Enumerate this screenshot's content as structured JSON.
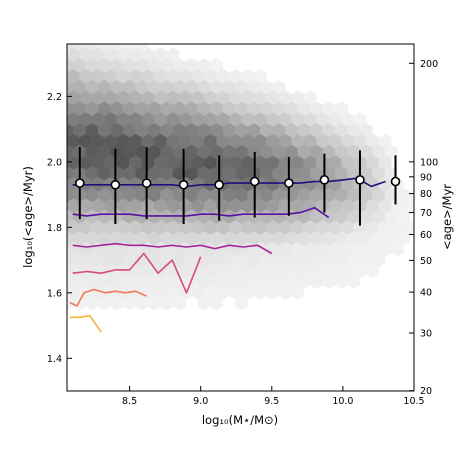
{
  "chart_data": {
    "type": "line",
    "xlabel": "log₁₀(M⋆/M⊙)",
    "ylabel": "log₁₀(<age>/Myr)",
    "ylabel_right": "<age>/Myr",
    "xlim": [
      8.06,
      10.5
    ],
    "ylim": [
      1.3,
      2.36
    ],
    "x_ticks": [
      {
        "value": 8.5,
        "label": "8.5"
      },
      {
        "value": 9.0,
        "label": "9.0"
      },
      {
        "value": 9.5,
        "label": "9.5"
      },
      {
        "value": 10.0,
        "label": "10.0"
      },
      {
        "value": 10.5,
        "label": "10.5"
      }
    ],
    "y_ticks": [
      {
        "value": 1.4,
        "label": "1.4"
      },
      {
        "value": 1.6,
        "label": "1.6"
      },
      {
        "value": 1.8,
        "label": "1.8"
      },
      {
        "value": 2.0,
        "label": "2.0"
      },
      {
        "value": 2.2,
        "label": "2.2"
      }
    ],
    "y_ticks_right": [
      {
        "value": 20,
        "label": "20"
      },
      {
        "value": 30,
        "label": "30"
      },
      {
        "value": 40,
        "label": "40"
      },
      {
        "value": 50,
        "label": "50"
      },
      {
        "value": 60,
        "label": "60"
      },
      {
        "value": 70,
        "label": "70"
      },
      {
        "value": 80,
        "label": "80"
      },
      {
        "value": 90,
        "label": "90"
      },
      {
        "value": 100,
        "label": "100"
      },
      {
        "value": 200,
        "label": "200"
      }
    ],
    "background": "hexbin density (grayscale)",
    "series": [
      {
        "color": "#1f0f7a",
        "x": [
          8.1,
          8.2,
          8.3,
          8.4,
          8.5,
          8.6,
          8.7,
          8.8,
          8.9,
          9.0,
          9.1,
          9.2,
          9.3,
          9.4,
          9.5,
          9.6,
          9.7,
          9.8,
          9.9,
          10.0,
          10.1,
          10.2,
          10.3
        ],
        "y": [
          1.93,
          1.93,
          1.93,
          1.93,
          1.93,
          1.93,
          1.93,
          1.93,
          1.925,
          1.93,
          1.93,
          1.935,
          1.935,
          1.935,
          1.935,
          1.935,
          1.935,
          1.94,
          1.94,
          1.945,
          1.95,
          1.925,
          1.94
        ]
      },
      {
        "color": "#5a10a0",
        "x": [
          8.1,
          8.2,
          8.3,
          8.4,
          8.5,
          8.6,
          8.7,
          8.8,
          8.9,
          9.0,
          9.1,
          9.2,
          9.3,
          9.4,
          9.5,
          9.6,
          9.7,
          9.8,
          9.9
        ],
        "y": [
          1.84,
          1.835,
          1.84,
          1.84,
          1.84,
          1.835,
          1.835,
          1.835,
          1.835,
          1.84,
          1.84,
          1.835,
          1.84,
          1.84,
          1.84,
          1.84,
          1.845,
          1.86,
          1.83
        ]
      },
      {
        "color": "#a8229a",
        "x": [
          8.1,
          8.2,
          8.3,
          8.4,
          8.5,
          8.6,
          8.7,
          8.8,
          8.9,
          9.0,
          9.1,
          9.2,
          9.3,
          9.4,
          9.5
        ],
        "y": [
          1.745,
          1.74,
          1.745,
          1.75,
          1.745,
          1.745,
          1.74,
          1.745,
          1.74,
          1.745,
          1.735,
          1.745,
          1.74,
          1.745,
          1.72
        ]
      },
      {
        "color": "#d8487c",
        "x": [
          8.1,
          8.2,
          8.3,
          8.4,
          8.5,
          8.6,
          8.7,
          8.8,
          8.9,
          9.0
        ],
        "y": [
          1.66,
          1.665,
          1.66,
          1.67,
          1.67,
          1.72,
          1.66,
          1.7,
          1.6,
          1.71
        ]
      },
      {
        "color": "#ee7a5a",
        "x": [
          8.08,
          8.13,
          8.18,
          8.25,
          8.33,
          8.4,
          8.47,
          8.54,
          8.62
        ],
        "y": [
          1.57,
          1.56,
          1.6,
          1.61,
          1.6,
          1.605,
          1.6,
          1.605,
          1.59
        ]
      },
      {
        "color": "#f8b43c",
        "x": [
          8.08,
          8.15,
          8.22,
          8.3
        ],
        "y": [
          1.525,
          1.525,
          1.53,
          1.48
        ]
      }
    ],
    "points": {
      "x": [
        8.15,
        8.4,
        8.62,
        8.88,
        9.13,
        9.38,
        9.62,
        9.87,
        10.12,
        10.37
      ],
      "y": [
        1.935,
        1.93,
        1.935,
        1.93,
        1.93,
        1.94,
        1.935,
        1.945,
        1.945,
        1.94
      ],
      "err_low": [
        0.11,
        0.12,
        0.11,
        0.12,
        0.11,
        0.11,
        0.1,
        0.1,
        0.14,
        0.07
      ],
      "err_high": [
        0.11,
        0.11,
        0.11,
        0.11,
        0.09,
        0.09,
        0.08,
        0.08,
        0.09,
        0.08
      ]
    }
  }
}
